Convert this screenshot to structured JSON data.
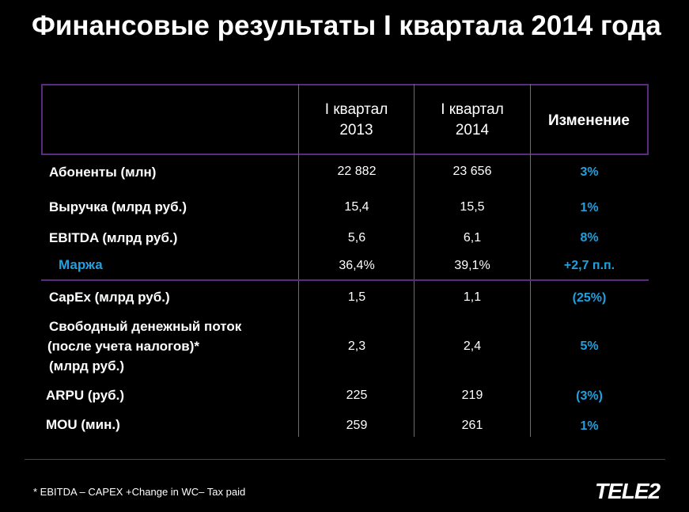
{
  "title": "Финансовые результаты I квартала 2014 года",
  "table": {
    "headers": {
      "col_2013": [
        "I квартал",
        "2013"
      ],
      "col_2014": [
        "I квартал",
        "2014"
      ],
      "col_change": "Изменение"
    },
    "rows": [
      {
        "label": "Абоненты (млн)",
        "q2013": "22 882",
        "q2014": "23 656",
        "change": "3%"
      },
      {
        "label": "Выручка (млрд руб.)",
        "q2013": "15,4",
        "q2014": "15,5",
        "change": "1%"
      },
      {
        "label": "EBITDA (млрд руб.)",
        "q2013": "5,6",
        "q2014": "6,1",
        "change": "8%"
      },
      {
        "label": "Маржа",
        "q2013": "36,4%",
        "q2014": "39,1%",
        "change": "+2,7 п.п."
      },
      {
        "label": "CapEx (млрд руб.)",
        "q2013": "1,5",
        "q2014": "1,1",
        "change": "(25%)"
      },
      {
        "label_lines": [
          "Свободный денежный поток",
          "(после учета налогов)*",
          "(млрд руб.)"
        ],
        "q2013": "2,3",
        "q2014": "2,4",
        "change": "5%"
      },
      {
        "label": "ARPU (руб.)",
        "q2013": "225",
        "q2014": "219",
        "change": "(3%)"
      },
      {
        "label": "MOU (мин.)",
        "q2013": "259",
        "q2014": "261",
        "change": "1%"
      }
    ]
  },
  "footnote": "* EBITDA – CAPEX +Change in WC– Tax paid",
  "logo_text": "TELE2",
  "colors": {
    "accent": "#1ea1e0",
    "border": "#5b2a82",
    "background": "#000000"
  }
}
